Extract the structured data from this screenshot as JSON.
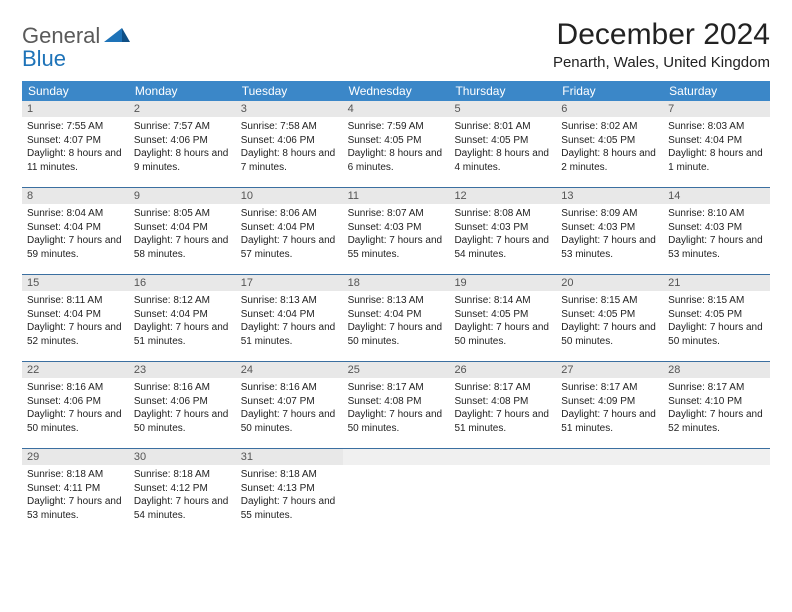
{
  "logo": {
    "line1": "General",
    "line2": "Blue"
  },
  "title": "December 2024",
  "location": "Penarth, Wales, United Kingdom",
  "colors": {
    "header_bg": "#3b87c8",
    "header_text": "#ffffff",
    "daynum_bg": "#e8e8e8",
    "week_border": "#3b6fa0",
    "logo_gray": "#5a5a5a",
    "logo_blue": "#1e73b8"
  },
  "typography": {
    "title_fontsize": 30,
    "location_fontsize": 15,
    "weekday_fontsize": 12,
    "daynum_fontsize": 11,
    "body_fontsize": 10
  },
  "weekdays": [
    "Sunday",
    "Monday",
    "Tuesday",
    "Wednesday",
    "Thursday",
    "Friday",
    "Saturday"
  ],
  "weeks": [
    [
      {
        "n": "1",
        "sunrise": "7:55 AM",
        "sunset": "4:07 PM",
        "daylight": "8 hours and 11 minutes."
      },
      {
        "n": "2",
        "sunrise": "7:57 AM",
        "sunset": "4:06 PM",
        "daylight": "8 hours and 9 minutes."
      },
      {
        "n": "3",
        "sunrise": "7:58 AM",
        "sunset": "4:06 PM",
        "daylight": "8 hours and 7 minutes."
      },
      {
        "n": "4",
        "sunrise": "7:59 AM",
        "sunset": "4:05 PM",
        "daylight": "8 hours and 6 minutes."
      },
      {
        "n": "5",
        "sunrise": "8:01 AM",
        "sunset": "4:05 PM",
        "daylight": "8 hours and 4 minutes."
      },
      {
        "n": "6",
        "sunrise": "8:02 AM",
        "sunset": "4:05 PM",
        "daylight": "8 hours and 2 minutes."
      },
      {
        "n": "7",
        "sunrise": "8:03 AM",
        "sunset": "4:04 PM",
        "daylight": "8 hours and 1 minute."
      }
    ],
    [
      {
        "n": "8",
        "sunrise": "8:04 AM",
        "sunset": "4:04 PM",
        "daylight": "7 hours and 59 minutes."
      },
      {
        "n": "9",
        "sunrise": "8:05 AM",
        "sunset": "4:04 PM",
        "daylight": "7 hours and 58 minutes."
      },
      {
        "n": "10",
        "sunrise": "8:06 AM",
        "sunset": "4:04 PM",
        "daylight": "7 hours and 57 minutes."
      },
      {
        "n": "11",
        "sunrise": "8:07 AM",
        "sunset": "4:03 PM",
        "daylight": "7 hours and 55 minutes."
      },
      {
        "n": "12",
        "sunrise": "8:08 AM",
        "sunset": "4:03 PM",
        "daylight": "7 hours and 54 minutes."
      },
      {
        "n": "13",
        "sunrise": "8:09 AM",
        "sunset": "4:03 PM",
        "daylight": "7 hours and 53 minutes."
      },
      {
        "n": "14",
        "sunrise": "8:10 AM",
        "sunset": "4:03 PM",
        "daylight": "7 hours and 53 minutes."
      }
    ],
    [
      {
        "n": "15",
        "sunrise": "8:11 AM",
        "sunset": "4:04 PM",
        "daylight": "7 hours and 52 minutes."
      },
      {
        "n": "16",
        "sunrise": "8:12 AM",
        "sunset": "4:04 PM",
        "daylight": "7 hours and 51 minutes."
      },
      {
        "n": "17",
        "sunrise": "8:13 AM",
        "sunset": "4:04 PM",
        "daylight": "7 hours and 51 minutes."
      },
      {
        "n": "18",
        "sunrise": "8:13 AM",
        "sunset": "4:04 PM",
        "daylight": "7 hours and 50 minutes."
      },
      {
        "n": "19",
        "sunrise": "8:14 AM",
        "sunset": "4:05 PM",
        "daylight": "7 hours and 50 minutes."
      },
      {
        "n": "20",
        "sunrise": "8:15 AM",
        "sunset": "4:05 PM",
        "daylight": "7 hours and 50 minutes."
      },
      {
        "n": "21",
        "sunrise": "8:15 AM",
        "sunset": "4:05 PM",
        "daylight": "7 hours and 50 minutes."
      }
    ],
    [
      {
        "n": "22",
        "sunrise": "8:16 AM",
        "sunset": "4:06 PM",
        "daylight": "7 hours and 50 minutes."
      },
      {
        "n": "23",
        "sunrise": "8:16 AM",
        "sunset": "4:06 PM",
        "daylight": "7 hours and 50 minutes."
      },
      {
        "n": "24",
        "sunrise": "8:16 AM",
        "sunset": "4:07 PM",
        "daylight": "7 hours and 50 minutes."
      },
      {
        "n": "25",
        "sunrise": "8:17 AM",
        "sunset": "4:08 PM",
        "daylight": "7 hours and 50 minutes."
      },
      {
        "n": "26",
        "sunrise": "8:17 AM",
        "sunset": "4:08 PM",
        "daylight": "7 hours and 51 minutes."
      },
      {
        "n": "27",
        "sunrise": "8:17 AM",
        "sunset": "4:09 PM",
        "daylight": "7 hours and 51 minutes."
      },
      {
        "n": "28",
        "sunrise": "8:17 AM",
        "sunset": "4:10 PM",
        "daylight": "7 hours and 52 minutes."
      }
    ],
    [
      {
        "n": "29",
        "sunrise": "8:18 AM",
        "sunset": "4:11 PM",
        "daylight": "7 hours and 53 minutes."
      },
      {
        "n": "30",
        "sunrise": "8:18 AM",
        "sunset": "4:12 PM",
        "daylight": "7 hours and 54 minutes."
      },
      {
        "n": "31",
        "sunrise": "8:18 AM",
        "sunset": "4:13 PM",
        "daylight": "7 hours and 55 minutes."
      },
      null,
      null,
      null,
      null
    ]
  ],
  "labels": {
    "sunrise": "Sunrise:",
    "sunset": "Sunset:",
    "daylight": "Daylight:"
  }
}
